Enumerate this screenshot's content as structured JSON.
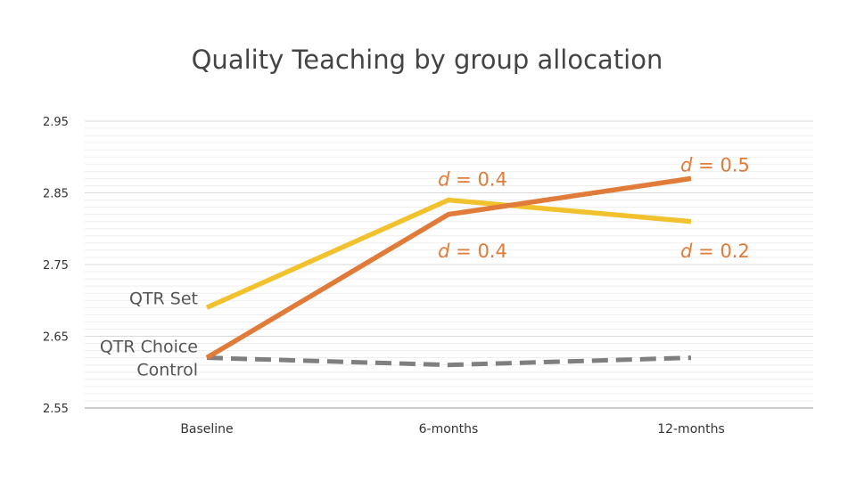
{
  "chart_data": {
    "type": "line",
    "title": "Quality Teaching by group allocation",
    "xlabel": "",
    "ylabel": "",
    "categories": [
      "Baseline",
      "6-months",
      "12-months"
    ],
    "ylim": [
      2.55,
      2.95
    ],
    "yticks": [
      "2.95",
      "2.85",
      "2.75",
      "2.65",
      "2.55"
    ],
    "grid": true,
    "series": [
      {
        "name": "QTR Set",
        "values": [
          2.69,
          2.84,
          2.81
        ],
        "color": "#f2c12e",
        "style": "solid"
      },
      {
        "name": "QTR Choice",
        "values": [
          2.62,
          2.82,
          2.87
        ],
        "color": "#e07b39",
        "style": "solid"
      },
      {
        "name": "Control",
        "values": [
          2.62,
          2.61,
          2.62
        ],
        "color": "#7f7f7f",
        "style": "dashed"
      }
    ],
    "annotations": [
      {
        "prefix": "d",
        "text": " = 0.4",
        "x": "6-months",
        "y": 2.87
      },
      {
        "prefix": "d",
        "text": " = 0.4",
        "x": "6-months",
        "y": 2.77
      },
      {
        "prefix": "d",
        "text": " = 0.5",
        "x": "12-months",
        "y": 2.89
      },
      {
        "prefix": "d",
        "text": " = 0.2",
        "x": "12-months",
        "y": 2.77
      }
    ]
  }
}
